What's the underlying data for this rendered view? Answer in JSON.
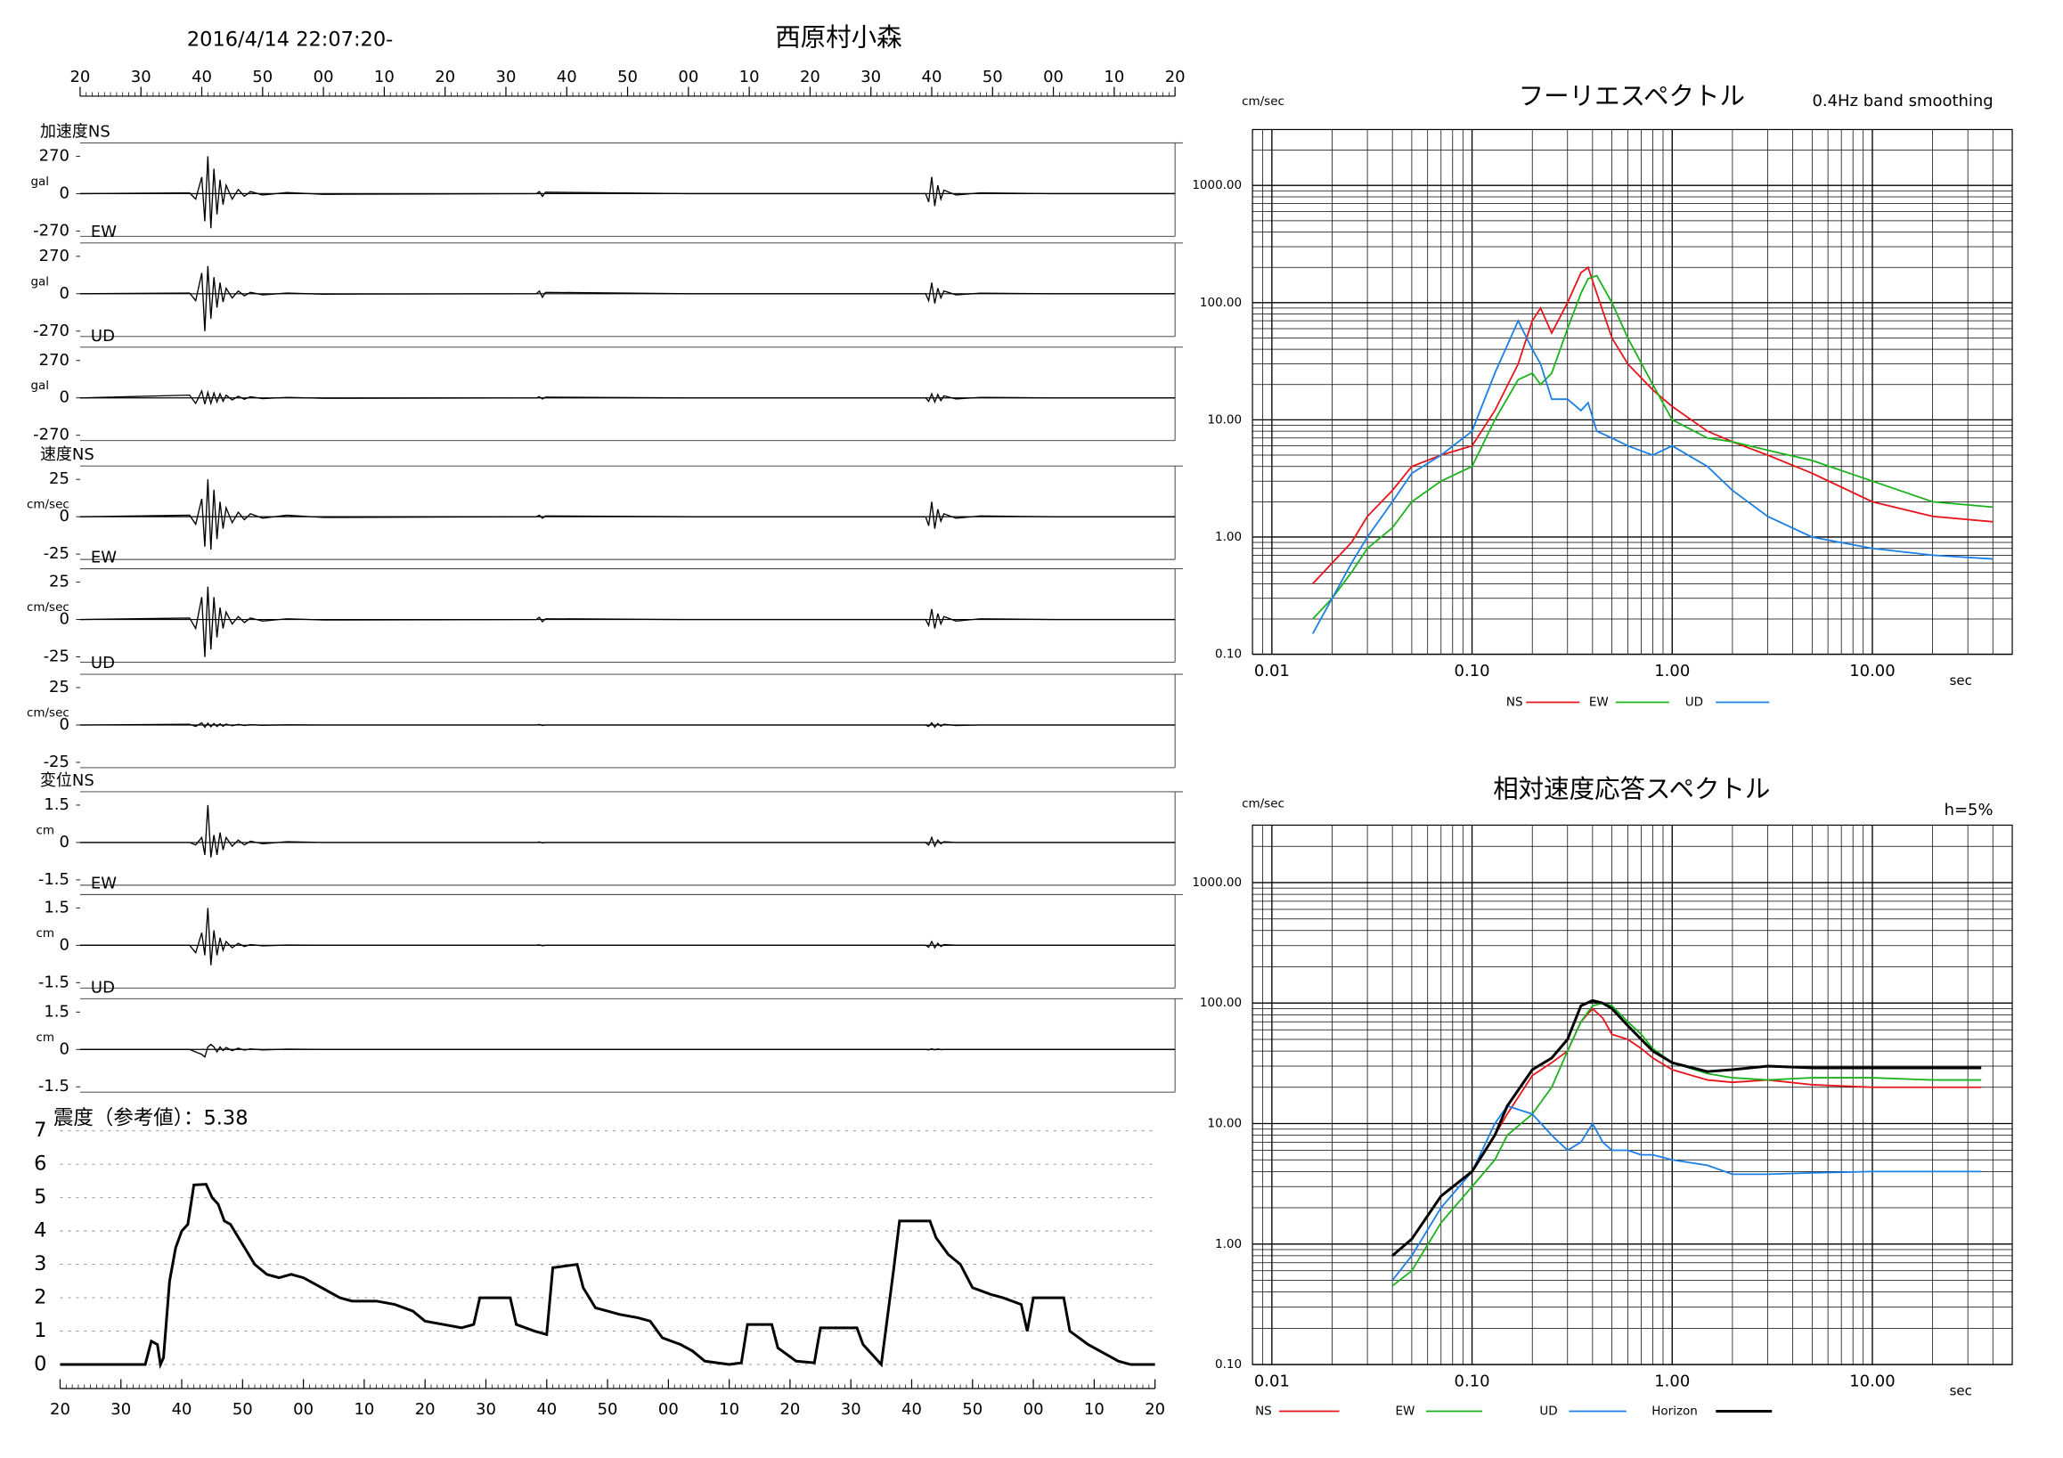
{
  "chart_data": [
    {
      "type": "waveform",
      "title": "西原村小森",
      "subtitle": "2016/4/14 22:07:20-",
      "xlim": [
        0,
        180
      ],
      "xticks": [
        {
          "value": 0,
          "label": "20"
        },
        {
          "value": 10,
          "label": "30"
        },
        {
          "value": 20,
          "label": "40"
        },
        {
          "value": 30,
          "label": "50"
        },
        {
          "value": 40,
          "label": "00"
        },
        {
          "value": 50,
          "label": "10"
        },
        {
          "value": 60,
          "label": "20"
        },
        {
          "value": 70,
          "label": "30"
        },
        {
          "value": 80,
          "label": "40"
        },
        {
          "value": 90,
          "label": "50"
        },
        {
          "value": 100,
          "label": "00"
        },
        {
          "value": 110,
          "label": "10"
        },
        {
          "value": 120,
          "label": "20"
        },
        {
          "value": 130,
          "label": "30"
        },
        {
          "value": 140,
          "label": "40"
        },
        {
          "value": 150,
          "label": "50"
        },
        {
          "value": 160,
          "label": "00"
        },
        {
          "value": 170,
          "label": "10"
        },
        {
          "value": 180,
          "label": "20"
        }
      ],
      "x": [
        0,
        18,
        19,
        20,
        20.5,
        21,
        21.5,
        22,
        22.5,
        23,
        23.5,
        24,
        25,
        26,
        27,
        28,
        30,
        34,
        40,
        75,
        75.5,
        76,
        76.5,
        100,
        139,
        139.5,
        140,
        140.5,
        141,
        141.5,
        142,
        144,
        148,
        160,
        180
      ],
      "color": "#000000",
      "panels": [
        {
          "label": "加速度NS",
          "unit": "gal",
          "ylim": [
            -270,
            270
          ],
          "yticks": [
            270,
            0,
            -270
          ],
          "values": [
            0,
            5,
            -40,
            120,
            -200,
            270,
            -250,
            180,
            -150,
            100,
            -80,
            60,
            -40,
            30,
            -20,
            15,
            -10,
            8,
            -5,
            0,
            15,
            -20,
            10,
            0,
            0,
            -60,
            120,
            -90,
            60,
            -40,
            25,
            -10,
            5,
            0,
            0
          ]
        },
        {
          "label": "EW",
          "unit": "gal",
          "ylim": [
            -270,
            270
          ],
          "yticks": [
            270,
            0,
            -270
          ],
          "values": [
            0,
            5,
            -50,
            150,
            -270,
            200,
            -180,
            120,
            -100,
            80,
            -60,
            40,
            -30,
            20,
            -15,
            10,
            -8,
            5,
            -3,
            0,
            20,
            -25,
            10,
            0,
            0,
            -50,
            80,
            -70,
            40,
            -30,
            20,
            -8,
            4,
            0,
            0
          ]
        },
        {
          "label": "UD",
          "unit": "gal",
          "ylim": [
            -270,
            270
          ],
          "yticks": [
            270,
            0,
            -270
          ],
          "values": [
            0,
            20,
            -40,
            50,
            -45,
            40,
            -40,
            35,
            -30,
            30,
            -25,
            20,
            -15,
            12,
            -10,
            8,
            -5,
            4,
            -3,
            0,
            8,
            -8,
            5,
            0,
            0,
            -25,
            30,
            -30,
            25,
            -20,
            15,
            -8,
            4,
            0,
            0
          ]
        },
        {
          "label": "速度NS",
          "unit": "cm/sec",
          "ylim": [
            -25,
            25
          ],
          "yticks": [
            25,
            0,
            -25
          ],
          "values": [
            0,
            1,
            -5,
            12,
            -20,
            25,
            -22,
            18,
            -15,
            10,
            -8,
            6,
            -4,
            3,
            -2,
            2,
            -1,
            1,
            -0.5,
            0,
            1,
            -1,
            0.5,
            0,
            0,
            -6,
            10,
            -8,
            5,
            -3,
            2,
            -1,
            0.5,
            0,
            0
          ]
        },
        {
          "label": "EW",
          "unit": "cm/sec",
          "ylim": [
            -25,
            25
          ],
          "yticks": [
            25,
            0,
            -25
          ],
          "values": [
            0,
            1,
            -6,
            15,
            -25,
            22,
            -20,
            15,
            -12,
            8,
            -6,
            5,
            -3,
            2,
            -2,
            1,
            -1,
            0.5,
            -0.3,
            0,
            1.5,
            -1.5,
            0.5,
            0,
            0,
            -4,
            7,
            -6,
            4,
            -3,
            2,
            -1,
            0.5,
            0,
            0
          ]
        },
        {
          "label": "UD",
          "unit": "cm/sec",
          "ylim": [
            -25,
            25
          ],
          "yticks": [
            25,
            0,
            -25
          ],
          "values": [
            0,
            0.5,
            -1,
            1.5,
            -1.5,
            1.2,
            -1.2,
            1,
            -1,
            0.8,
            -0.8,
            0.6,
            -0.5,
            0.4,
            -0.3,
            0.2,
            -0.2,
            0.1,
            0,
            0,
            0.3,
            -0.3,
            0,
            0,
            0,
            -1,
            1.5,
            -1.5,
            1,
            -0.8,
            0.5,
            -0.3,
            0,
            0,
            0
          ]
        },
        {
          "label": "変位NS",
          "unit": "cm",
          "ylim": [
            -1.5,
            1.5
          ],
          "yticks": [
            1.5,
            0,
            -1.5
          ],
          "values": [
            0,
            0,
            -0.1,
            0.2,
            -0.5,
            1.5,
            -0.6,
            0.3,
            -0.5,
            0.4,
            -0.3,
            0.2,
            -0.15,
            0.1,
            -0.1,
            0.05,
            -0.05,
            0.03,
            0,
            0,
            0.02,
            -0.02,
            0,
            0,
            0,
            -0.1,
            0.2,
            -0.15,
            0.1,
            -0.05,
            0.03,
            0,
            0,
            0,
            0
          ]
        },
        {
          "label": "EW",
          "unit": "cm",
          "ylim": [
            -1.5,
            1.5
          ],
          "yticks": [
            1.5,
            0,
            -1.5
          ],
          "values": [
            0,
            0,
            -0.3,
            0.5,
            -0.4,
            1.5,
            -0.8,
            0.6,
            -0.4,
            0.3,
            -0.2,
            0.15,
            -0.1,
            0.08,
            -0.05,
            0.03,
            -0.02,
            0.01,
            0,
            0,
            0.02,
            -0.02,
            0,
            0,
            0,
            -0.08,
            0.15,
            -0.1,
            0.08,
            -0.05,
            0.03,
            0,
            0,
            0,
            0
          ]
        },
        {
          "label": "UD",
          "unit": "cm",
          "ylim": [
            -1.5,
            1.5
          ],
          "yticks": [
            1.5,
            0,
            -1.5
          ],
          "values": [
            0,
            0,
            -0.1,
            -0.2,
            -0.3,
            0.1,
            0.2,
            0.1,
            -0.1,
            0.1,
            -0.05,
            0.08,
            -0.05,
            0.05,
            -0.03,
            0.02,
            -0.02,
            0.01,
            0,
            0,
            0,
            0,
            0,
            0,
            0,
            -0.02,
            0.03,
            -0.02,
            0.02,
            -0.01,
            0,
            0,
            0,
            0,
            0
          ]
        }
      ]
    },
    {
      "type": "line",
      "title": "震度（参考値）：5.38",
      "color": "#000000",
      "grid": true,
      "xlim": [
        0,
        180
      ],
      "xticks": [
        {
          "value": 0,
          "label": "20"
        },
        {
          "value": 10,
          "label": "30"
        },
        {
          "value": 20,
          "label": "40"
        },
        {
          "value": 30,
          "label": "50"
        },
        {
          "value": 40,
          "label": "00"
        },
        {
          "value": 50,
          "label": "10"
        },
        {
          "value": 60,
          "label": "20"
        },
        {
          "value": 70,
          "label": "30"
        },
        {
          "value": 80,
          "label": "40"
        },
        {
          "value": 90,
          "label": "50"
        },
        {
          "value": 100,
          "label": "00"
        },
        {
          "value": 110,
          "label": "10"
        },
        {
          "value": 120,
          "label": "20"
        },
        {
          "value": 130,
          "label": "30"
        },
        {
          "value": 140,
          "label": "40"
        },
        {
          "value": 150,
          "label": "50"
        },
        {
          "value": 160,
          "label": "00"
        },
        {
          "value": 170,
          "label": "10"
        },
        {
          "value": 180,
          "label": "20"
        }
      ],
      "ylim": [
        0,
        7
      ],
      "yticks": [
        0,
        1,
        2,
        3,
        4,
        5,
        6,
        7
      ],
      "x": [
        0,
        14,
        15,
        16,
        16.5,
        17,
        18,
        19,
        20,
        21,
        22,
        24,
        25,
        26,
        27,
        28,
        30,
        32,
        34,
        36,
        38,
        40,
        42,
        44,
        46,
        48,
        52,
        55,
        58,
        60,
        63,
        66,
        68,
        69,
        74,
        75,
        78,
        80,
        81,
        85,
        86,
        88,
        92,
        95,
        97,
        99,
        102,
        104,
        106,
        110,
        112,
        113,
        117,
        118,
        121,
        124,
        125,
        131,
        132,
        134,
        135,
        137,
        138,
        143,
        144,
        146,
        148,
        150,
        153,
        155,
        158,
        159,
        160,
        165,
        166,
        169,
        172,
        174,
        176,
        180
      ],
      "values": [
        0,
        0,
        0.7,
        0.6,
        0,
        0.2,
        2.5,
        3.5,
        4.0,
        4.2,
        5.38,
        5.4,
        5.0,
        4.8,
        4.3,
        4.2,
        3.6,
        3.0,
        2.7,
        2.6,
        2.7,
        2.6,
        2.4,
        2.2,
        2.0,
        1.9,
        1.9,
        1.8,
        1.6,
        1.3,
        1.2,
        1.1,
        1.2,
        2.0,
        2.0,
        1.2,
        1.0,
        0.9,
        2.9,
        3.0,
        2.3,
        1.7,
        1.5,
        1.4,
        1.3,
        0.8,
        0.6,
        0.4,
        0.1,
        0,
        0.05,
        1.2,
        1.2,
        0.5,
        0.1,
        0.05,
        1.1,
        1.1,
        0.6,
        0.2,
        0,
        2.8,
        4.3,
        4.3,
        3.8,
        3.3,
        3.0,
        2.3,
        2.1,
        2.0,
        1.8,
        1.0,
        2.0,
        2.0,
        1.0,
        0.6,
        0.3,
        0.1,
        0,
        0
      ]
    },
    {
      "type": "spectrum",
      "title": "フーリエスペクトル",
      "subtitle": "0.4Hz band smoothing",
      "y_label": "cm/sec",
      "x_label": "sec",
      "log_x": true,
      "log_y": true,
      "grid": true,
      "minor_grid": true,
      "xlim": [
        0.008,
        50
      ],
      "xticks": [
        0.01,
        {
          "value": 0.1,
          "label": "0.10"
        },
        {
          "value": 1,
          "label": "1.00"
        },
        {
          "value": 10,
          "label": "10.00"
        }
      ],
      "ylim": [
        0.1,
        3000
      ],
      "yticks": [
        {
          "value": 0.1,
          "label": "0.10"
        },
        {
          "value": 1,
          "label": "1.00"
        },
        {
          "value": 10,
          "label": "10.00"
        },
        {
          "value": 100,
          "label": "100.00"
        },
        {
          "value": 1000,
          "label": "1000.00"
        }
      ],
      "x": [
        0.016,
        0.02,
        0.025,
        0.03,
        0.04,
        0.05,
        0.07,
        0.1,
        0.13,
        0.17,
        0.2,
        0.22,
        0.25,
        0.3,
        0.35,
        0.38,
        0.42,
        0.5,
        0.6,
        0.8,
        1,
        1.5,
        2,
        3,
        5,
        10,
        20,
        40
      ],
      "series": [
        {
          "name": "NS",
          "color": "#e8141b",
          "values": [
            0.4,
            0.6,
            0.9,
            1.5,
            2.5,
            4,
            5,
            6,
            12,
            30,
            70,
            90,
            55,
            100,
            180,
            200,
            120,
            50,
            30,
            18,
            13,
            8,
            6.5,
            5,
            3.5,
            2,
            1.5,
            1.35
          ]
        },
        {
          "name": "EW",
          "color": "#1bb31b",
          "values": [
            0.2,
            0.3,
            0.5,
            0.8,
            1.2,
            2,
            3,
            4,
            10,
            22,
            25,
            20,
            25,
            60,
            120,
            160,
            170,
            100,
            50,
            20,
            10,
            7,
            6.5,
            5.5,
            4.5,
            3,
            2,
            1.8
          ]
        },
        {
          "name": "UD",
          "color": "#1a7fe6",
          "values": [
            0.15,
            0.3,
            0.6,
            1,
            2,
            3.5,
            5,
            8,
            25,
            70,
            40,
            30,
            15,
            15,
            12,
            14,
            8,
            7,
            6,
            5,
            6,
            4,
            2.5,
            1.5,
            1,
            0.8,
            0.7,
            0.65
          ]
        }
      ]
    },
    {
      "type": "spectrum",
      "title": "相対速度応答スペクトル",
      "subtitle": "h=5%",
      "y_label": "cm/sec",
      "x_label": "sec",
      "log_x": true,
      "log_y": true,
      "grid": true,
      "minor_grid": true,
      "xlim": [
        0.008,
        50
      ],
      "xticks": [
        0.01,
        {
          "value": 0.1,
          "label": "0.10"
        },
        {
          "value": 1,
          "label": "1.00"
        },
        {
          "value": 10,
          "label": "10.00"
        }
      ],
      "ylim": [
        0.1,
        3000
      ],
      "yticks": [
        {
          "value": 0.1,
          "label": "0.10"
        },
        {
          "value": 1,
          "label": "1.00"
        },
        {
          "value": 10,
          "label": "10.00"
        },
        {
          "value": 100,
          "label": "100.00"
        },
        {
          "value": 1000,
          "label": "1000.00"
        }
      ],
      "x": [
        0.04,
        0.05,
        0.07,
        0.1,
        0.13,
        0.15,
        0.2,
        0.25,
        0.3,
        0.35,
        0.4,
        0.45,
        0.5,
        0.6,
        0.7,
        0.8,
        1,
        1.5,
        2,
        3,
        5,
        10,
        20,
        35
      ],
      "series": [
        {
          "name": "NS",
          "color": "#e8141b",
          "values": [
            0.8,
            1.1,
            2.5,
            4,
            8,
            12,
            25,
            32,
            40,
            70,
            90,
            75,
            55,
            50,
            42,
            35,
            28,
            23,
            22,
            23,
            21,
            20,
            20,
            20
          ]
        },
        {
          "name": "EW",
          "color": "#1bb31b",
          "values": [
            0.45,
            0.6,
            1.5,
            3,
            5,
            8,
            12,
            20,
            40,
            70,
            95,
            100,
            95,
            70,
            55,
            42,
            32,
            26,
            24,
            23,
            24,
            24,
            23,
            23
          ]
        },
        {
          "name": "UD",
          "color": "#1a7fe6",
          "values": [
            0.5,
            0.8,
            2,
            4,
            10,
            14,
            12,
            8,
            6,
            7,
            10,
            7,
            6,
            6,
            5.5,
            5.5,
            5,
            4.5,
            3.8,
            3.8,
            3.9,
            4,
            4,
            4
          ]
        },
        {
          "name": "Horizon",
          "color": "#000000",
          "values": [
            0.8,
            1.1,
            2.5,
            4,
            8,
            14,
            28,
            35,
            50,
            95,
            105,
            100,
            90,
            65,
            50,
            40,
            32,
            27,
            28,
            30,
            29,
            29,
            29,
            29
          ]
        }
      ]
    }
  ]
}
